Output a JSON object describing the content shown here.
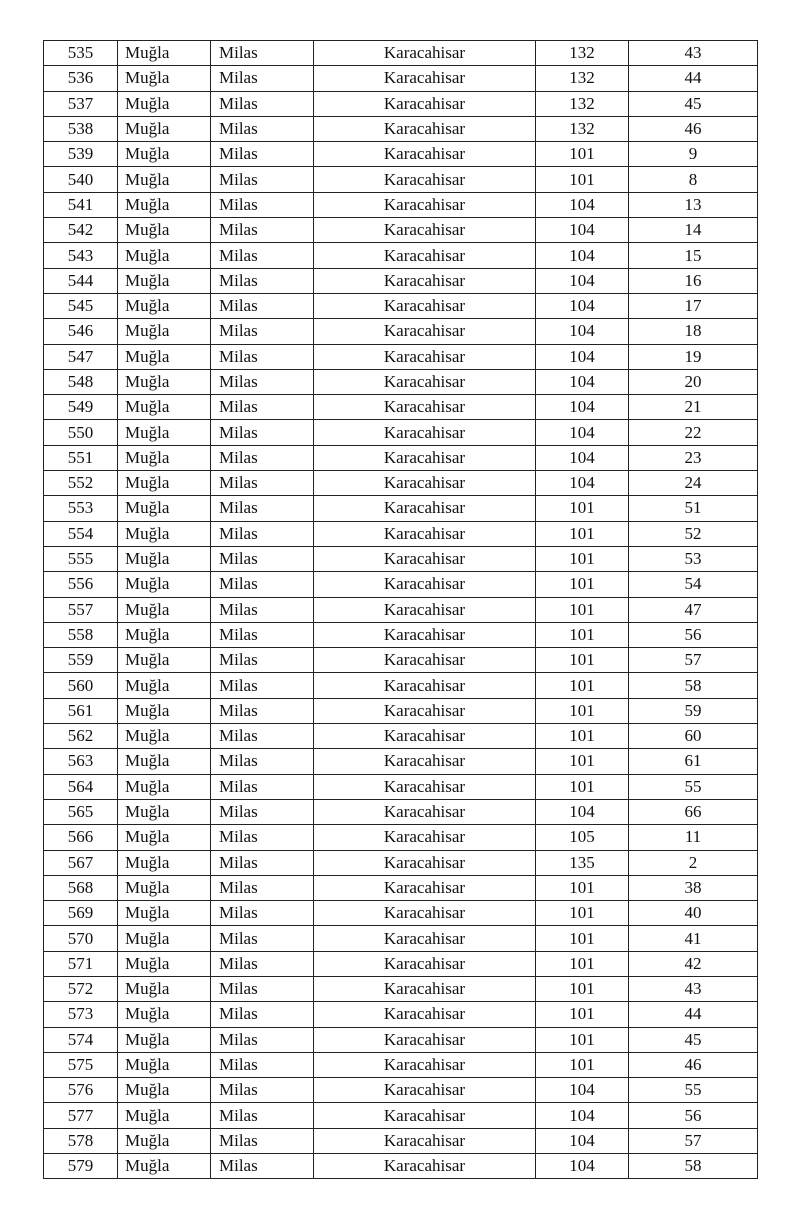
{
  "rows": [
    [
      "535",
      "Muğla",
      "Milas",
      "Karacahisar",
      "132",
      "43"
    ],
    [
      "536",
      "Muğla",
      "Milas",
      "Karacahisar",
      "132",
      "44"
    ],
    [
      "537",
      "Muğla",
      "Milas",
      "Karacahisar",
      "132",
      "45"
    ],
    [
      "538",
      "Muğla",
      "Milas",
      "Karacahisar",
      "132",
      "46"
    ],
    [
      "539",
      "Muğla",
      "Milas",
      "Karacahisar",
      "101",
      "9"
    ],
    [
      "540",
      "Muğla",
      "Milas",
      "Karacahisar",
      "101",
      "8"
    ],
    [
      "541",
      "Muğla",
      "Milas",
      "Karacahisar",
      "104",
      "13"
    ],
    [
      "542",
      "Muğla",
      "Milas",
      "Karacahisar",
      "104",
      "14"
    ],
    [
      "543",
      "Muğla",
      "Milas",
      "Karacahisar",
      "104",
      "15"
    ],
    [
      "544",
      "Muğla",
      "Milas",
      "Karacahisar",
      "104",
      "16"
    ],
    [
      "545",
      "Muğla",
      "Milas",
      "Karacahisar",
      "104",
      "17"
    ],
    [
      "546",
      "Muğla",
      "Milas",
      "Karacahisar",
      "104",
      "18"
    ],
    [
      "547",
      "Muğla",
      "Milas",
      "Karacahisar",
      "104",
      "19"
    ],
    [
      "548",
      "Muğla",
      "Milas",
      "Karacahisar",
      "104",
      "20"
    ],
    [
      "549",
      "Muğla",
      "Milas",
      "Karacahisar",
      "104",
      "21"
    ],
    [
      "550",
      "Muğla",
      "Milas",
      "Karacahisar",
      "104",
      "22"
    ],
    [
      "551",
      "Muğla",
      "Milas",
      "Karacahisar",
      "104",
      "23"
    ],
    [
      "552",
      "Muğla",
      "Milas",
      "Karacahisar",
      "104",
      "24"
    ],
    [
      "553",
      "Muğla",
      "Milas",
      "Karacahisar",
      "101",
      "51"
    ],
    [
      "554",
      "Muğla",
      "Milas",
      "Karacahisar",
      "101",
      "52"
    ],
    [
      "555",
      "Muğla",
      "Milas",
      "Karacahisar",
      "101",
      "53"
    ],
    [
      "556",
      "Muğla",
      "Milas",
      "Karacahisar",
      "101",
      "54"
    ],
    [
      "557",
      "Muğla",
      "Milas",
      "Karacahisar",
      "101",
      "47"
    ],
    [
      "558",
      "Muğla",
      "Milas",
      "Karacahisar",
      "101",
      "56"
    ],
    [
      "559",
      "Muğla",
      "Milas",
      "Karacahisar",
      "101",
      "57"
    ],
    [
      "560",
      "Muğla",
      "Milas",
      "Karacahisar",
      "101",
      "58"
    ],
    [
      "561",
      "Muğla",
      "Milas",
      "Karacahisar",
      "101",
      "59"
    ],
    [
      "562",
      "Muğla",
      "Milas",
      "Karacahisar",
      "101",
      "60"
    ],
    [
      "563",
      "Muğla",
      "Milas",
      "Karacahisar",
      "101",
      "61"
    ],
    [
      "564",
      "Muğla",
      "Milas",
      "Karacahisar",
      "101",
      "55"
    ],
    [
      "565",
      "Muğla",
      "Milas",
      "Karacahisar",
      "104",
      "66"
    ],
    [
      "566",
      "Muğla",
      "Milas",
      "Karacahisar",
      "105",
      "11"
    ],
    [
      "567",
      "Muğla",
      "Milas",
      "Karacahisar",
      "135",
      "2"
    ],
    [
      "568",
      "Muğla",
      "Milas",
      "Karacahisar",
      "101",
      "38"
    ],
    [
      "569",
      "Muğla",
      "Milas",
      "Karacahisar",
      "101",
      "40"
    ],
    [
      "570",
      "Muğla",
      "Milas",
      "Karacahisar",
      "101",
      "41"
    ],
    [
      "571",
      "Muğla",
      "Milas",
      "Karacahisar",
      "101",
      "42"
    ],
    [
      "572",
      "Muğla",
      "Milas",
      "Karacahisar",
      "101",
      "43"
    ],
    [
      "573",
      "Muğla",
      "Milas",
      "Karacahisar",
      "101",
      "44"
    ],
    [
      "574",
      "Muğla",
      "Milas",
      "Karacahisar",
      "101",
      "45"
    ],
    [
      "575",
      "Muğla",
      "Milas",
      "Karacahisar",
      "101",
      "46"
    ],
    [
      "576",
      "Muğla",
      "Milas",
      "Karacahisar",
      "104",
      "55"
    ],
    [
      "577",
      "Muğla",
      "Milas",
      "Karacahisar",
      "104",
      "56"
    ],
    [
      "578",
      "Muğla",
      "Milas",
      "Karacahisar",
      "104",
      "57"
    ],
    [
      "579",
      "Muğla",
      "Milas",
      "Karacahisar",
      "104",
      "58"
    ]
  ]
}
